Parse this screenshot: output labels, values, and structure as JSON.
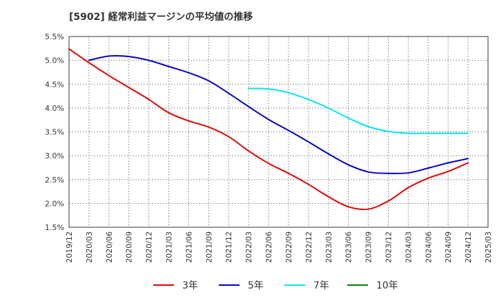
{
  "chart_data": {
    "type": "line",
    "title": "[5902]  経常利益マージンの平均値の推移",
    "x_labels": [
      "2019/12",
      "2020/03",
      "2020/06",
      "2020/09",
      "2020/12",
      "2021/03",
      "2021/06",
      "2021/09",
      "2021/12",
      "2022/03",
      "2022/06",
      "2022/09",
      "2022/12",
      "2023/03",
      "2023/06",
      "2023/09",
      "2023/12",
      "2024/03",
      "2024/06",
      "2024/09",
      "2024/12",
      "2025/03"
    ],
    "y_ticks": [
      "1.5%",
      "2.0%",
      "2.5%",
      "3.0%",
      "3.5%",
      "4.0%",
      "4.5%",
      "5.0%",
      "5.5%"
    ],
    "ylim": [
      1.5,
      5.5
    ],
    "y_unit": "%",
    "grid": true,
    "legend_position": "bottom",
    "series": [
      {
        "name": "3年",
        "color": "#e60000",
        "values": [
          5.24,
          4.95,
          4.68,
          4.43,
          4.18,
          3.9,
          3.73,
          3.6,
          3.4,
          3.1,
          2.84,
          2.63,
          2.4,
          2.14,
          1.93,
          1.88,
          2.05,
          2.33,
          2.53,
          2.67,
          2.85,
          null
        ]
      },
      {
        "name": "5年",
        "color": "#0000cc",
        "values": [
          null,
          5.0,
          5.09,
          5.08,
          5.0,
          4.87,
          4.74,
          4.57,
          4.31,
          4.03,
          3.76,
          3.53,
          3.29,
          3.04,
          2.81,
          2.66,
          2.63,
          2.64,
          2.74,
          2.85,
          2.94,
          null
        ]
      },
      {
        "name": "7年",
        "color": "#00e5ee",
        "values": [
          null,
          null,
          null,
          null,
          null,
          null,
          null,
          null,
          null,
          4.41,
          4.4,
          4.32,
          4.18,
          4.0,
          3.79,
          3.61,
          3.51,
          3.47,
          3.47,
          3.47,
          3.47,
          null
        ]
      },
      {
        "name": "10年",
        "color": "#008000",
        "values": [
          null,
          null,
          null,
          null,
          null,
          null,
          null,
          null,
          null,
          null,
          null,
          null,
          null,
          null,
          null,
          null,
          null,
          null,
          null,
          null,
          null,
          null
        ]
      }
    ]
  }
}
